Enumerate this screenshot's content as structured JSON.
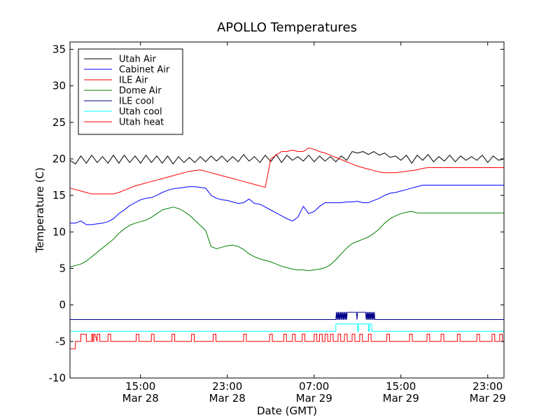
{
  "chart_data": {
    "type": "line",
    "title": "APOLLO Temperatures",
    "xlabel": "Date (GMT)",
    "ylabel": "Temperature (C)",
    "xlim_hours": [
      8.5,
      48.5
    ],
    "ylim": [
      -10,
      36
    ],
    "grid": false,
    "legend_position": "top-left",
    "x_ticks": [
      {
        "hours": 15,
        "time": "15:00",
        "date": "Mar 28"
      },
      {
        "hours": 23,
        "time": "23:00",
        "date": "Mar 28"
      },
      {
        "hours": 31,
        "time": "07:00",
        "date": "Mar 29"
      },
      {
        "hours": 39,
        "time": "15:00",
        "date": "Mar 29"
      },
      {
        "hours": 47,
        "time": "23:00",
        "date": "Mar 29"
      }
    ],
    "y_ticks": [
      -10,
      -5,
      0,
      5,
      10,
      15,
      20,
      25,
      30,
      35
    ],
    "y_tick_labels": [
      "-10",
      "-5",
      "0",
      "5",
      "10",
      "15",
      "20",
      "25",
      "30",
      "35"
    ],
    "series": [
      {
        "name": "Utah Air",
        "color": "#000000",
        "x": [
          8.5,
          9.0,
          9.5,
          10.0,
          10.5,
          11.0,
          11.5,
          12.0,
          12.5,
          13.0,
          13.5,
          14.0,
          14.5,
          15.0,
          15.5,
          16.0,
          16.5,
          17.0,
          17.5,
          18.0,
          18.5,
          19.0,
          19.5,
          20.0,
          20.5,
          21.0,
          21.5,
          22.0,
          22.5,
          23.0,
          23.5,
          24.0,
          24.5,
          25.0,
          25.5,
          26.0,
          26.5,
          27.0,
          27.5,
          28.0,
          28.5,
          29.0,
          29.5,
          30.0,
          30.5,
          31.0,
          31.5,
          32.0,
          32.5,
          33.0,
          33.5,
          34.0,
          34.5,
          35.0,
          35.5,
          36.0,
          36.5,
          37.0,
          37.5,
          38.0,
          38.5,
          39.0,
          39.5,
          40.0,
          40.5,
          41.0,
          41.5,
          42.0,
          42.5,
          43.0,
          43.5,
          44.0,
          44.5,
          45.0,
          45.5,
          46.0,
          46.5,
          47.0,
          47.5,
          48.0,
          48.5
        ],
        "values": [
          19.8,
          19.3,
          20.4,
          19.4,
          20.5,
          19.5,
          20.3,
          19.4,
          20.5,
          19.4,
          20.5,
          19.5,
          20.4,
          19.4,
          20.5,
          19.5,
          20.4,
          19.4,
          20.4,
          19.3,
          20.3,
          19.5,
          20.2,
          19.5,
          20.3,
          19.6,
          20.4,
          19.7,
          20.4,
          19.6,
          20.3,
          19.6,
          20.6,
          19.7,
          20.3,
          19.5,
          20.5,
          19.6,
          20.6,
          19.5,
          20.5,
          19.8,
          20.3,
          19.7,
          20.5,
          19.6,
          20.4,
          19.7,
          20.3,
          19.6,
          20.4,
          19.8,
          21.0,
          20.8,
          21.0,
          20.6,
          21.0,
          20.5,
          20.8,
          20.2,
          20.4,
          19.8,
          20.5,
          19.4,
          20.5,
          19.8,
          20.6,
          19.6,
          20.3,
          19.7,
          20.5,
          19.6,
          20.4,
          19.8,
          20.3,
          19.8,
          20.5,
          19.5,
          20.4,
          19.8,
          20.0
        ]
      },
      {
        "name": "Cabinet Air",
        "color": "#0000ff",
        "x": [
          8.5,
          9.0,
          9.5,
          10.0,
          10.5,
          11.0,
          11.5,
          12.0,
          12.5,
          13.0,
          13.5,
          14.0,
          14.5,
          15.0,
          15.5,
          16.0,
          16.5,
          17.0,
          17.5,
          18.0,
          18.5,
          19.0,
          19.5,
          20.0,
          20.5,
          21.0,
          21.5,
          22.0,
          22.5,
          23.0,
          23.5,
          24.0,
          24.5,
          25.0,
          25.5,
          26.0,
          26.5,
          27.0,
          27.5,
          28.0,
          28.5,
          29.0,
          29.5,
          30.0,
          30.5,
          31.0,
          31.5,
          32.0,
          32.5,
          33.0,
          33.5,
          34.0,
          34.5,
          35.0,
          35.5,
          36.0,
          36.5,
          37.0,
          37.5,
          38.0,
          38.5,
          39.0,
          39.5,
          40.0,
          40.5,
          41.0,
          41.5,
          42.0,
          42.5,
          43.0,
          43.5,
          44.0,
          44.5,
          45.0,
          45.5,
          46.0,
          46.5,
          47.0,
          47.5,
          48.0,
          48.5
        ],
        "values": [
          11.2,
          11.2,
          11.5,
          11.0,
          11.0,
          11.1,
          11.2,
          11.4,
          11.8,
          12.5,
          13.0,
          13.6,
          14.0,
          14.4,
          14.6,
          14.7,
          15.0,
          15.4,
          15.7,
          15.9,
          16.0,
          16.1,
          16.2,
          16.2,
          16.1,
          16.0,
          15.0,
          14.6,
          14.4,
          14.3,
          14.1,
          13.9,
          14.0,
          14.5,
          13.9,
          13.8,
          13.4,
          13.0,
          12.6,
          12.2,
          11.8,
          11.5,
          12.0,
          13.5,
          12.5,
          12.8,
          13.5,
          14.0,
          14.0,
          14.0,
          14.0,
          14.1,
          14.1,
          14.2,
          14.0,
          14.0,
          14.3,
          14.6,
          15.0,
          15.3,
          15.4,
          15.6,
          15.8,
          16.0,
          16.2,
          16.4,
          16.4,
          16.4,
          16.4,
          16.4,
          16.4,
          16.4,
          16.4,
          16.4,
          16.4,
          16.4,
          16.4,
          16.4,
          16.4,
          16.4,
          16.4
        ]
      },
      {
        "name": "ILE Air",
        "color": "#ff0000",
        "x": [
          8.5,
          9.0,
          9.5,
          10.0,
          10.5,
          11.0,
          11.5,
          12.0,
          12.5,
          13.0,
          13.5,
          14.0,
          14.5,
          15.0,
          15.5,
          16.0,
          16.5,
          17.0,
          17.5,
          18.0,
          18.5,
          19.0,
          19.5,
          20.0,
          20.5,
          21.0,
          21.5,
          22.0,
          22.5,
          23.0,
          23.5,
          24.0,
          24.5,
          25.0,
          25.5,
          26.0,
          26.5,
          27.0,
          27.5,
          28.0,
          28.5,
          29.0,
          29.5,
          30.0,
          30.5,
          31.0,
          31.5,
          32.0,
          32.5,
          33.0,
          33.5,
          34.0,
          34.5,
          35.0,
          35.5,
          36.0,
          36.5,
          37.0,
          37.5,
          38.0,
          38.5,
          39.0,
          39.5,
          40.0,
          40.5,
          41.0,
          41.5,
          42.0,
          42.5,
          43.0,
          43.5,
          44.0,
          44.5,
          45.0,
          45.5,
          46.0,
          46.5,
          47.0,
          47.5,
          48.0,
          48.5
        ],
        "values": [
          16.0,
          15.8,
          15.6,
          15.4,
          15.2,
          15.2,
          15.2,
          15.2,
          15.2,
          15.4,
          15.7,
          16.0,
          16.3,
          16.5,
          16.7,
          16.9,
          17.1,
          17.3,
          17.5,
          17.7,
          17.9,
          18.1,
          18.3,
          18.4,
          18.5,
          18.3,
          18.1,
          17.9,
          17.7,
          17.5,
          17.3,
          17.1,
          16.9,
          16.7,
          16.5,
          16.3,
          16.1,
          20.0,
          20.5,
          21.0,
          21.0,
          21.2,
          21.0,
          21.0,
          21.5,
          21.3,
          21.0,
          20.8,
          20.5,
          20.2,
          19.9,
          19.6,
          19.3,
          19.0,
          18.8,
          18.6,
          18.4,
          18.2,
          18.1,
          18.1,
          18.1,
          18.2,
          18.3,
          18.4,
          18.5,
          18.7,
          18.8,
          18.8,
          18.8,
          18.8,
          18.8,
          18.8,
          18.8,
          18.8,
          18.8,
          18.8,
          18.8,
          18.8,
          18.8,
          18.8,
          18.8
        ]
      },
      {
        "name": "Dome Air",
        "color": "#008000",
        "x": [
          8.5,
          9.0,
          9.5,
          10.0,
          10.5,
          11.0,
          11.5,
          12.0,
          12.5,
          13.0,
          13.5,
          14.0,
          14.5,
          15.0,
          15.5,
          16.0,
          16.5,
          17.0,
          17.5,
          18.0,
          18.5,
          19.0,
          19.5,
          20.0,
          20.5,
          21.0,
          21.5,
          22.0,
          22.5,
          23.0,
          23.5,
          24.0,
          24.5,
          25.0,
          25.5,
          26.0,
          26.5,
          27.0,
          27.5,
          28.0,
          28.5,
          29.0,
          29.5,
          30.0,
          30.5,
          31.0,
          31.5,
          32.0,
          32.5,
          33.0,
          33.5,
          34.0,
          34.5,
          35.0,
          35.5,
          36.0,
          36.5,
          37.0,
          37.5,
          38.0,
          38.5,
          39.0,
          39.5,
          40.0,
          40.5,
          41.0,
          41.5,
          42.0,
          42.5,
          43.0,
          43.5,
          44.0,
          44.5,
          45.0,
          45.5,
          46.0,
          46.5,
          47.0,
          47.5,
          48.0,
          48.5
        ],
        "values": [
          5.2,
          5.4,
          5.6,
          6.0,
          6.6,
          7.2,
          7.8,
          8.4,
          9.0,
          9.8,
          10.4,
          10.9,
          11.2,
          11.4,
          11.6,
          12.0,
          12.5,
          13.0,
          13.2,
          13.4,
          13.2,
          12.8,
          12.3,
          11.6,
          10.9,
          10.2,
          8.0,
          7.7,
          7.9,
          8.1,
          8.2,
          8.0,
          7.6,
          7.0,
          6.6,
          6.3,
          6.1,
          5.9,
          5.6,
          5.3,
          5.1,
          4.9,
          4.8,
          4.8,
          4.7,
          4.8,
          4.9,
          5.1,
          5.5,
          6.2,
          7.0,
          7.8,
          8.4,
          8.7,
          9.0,
          9.3,
          9.8,
          10.4,
          11.2,
          11.8,
          12.2,
          12.5,
          12.7,
          12.8,
          12.6,
          12.6,
          12.6,
          12.6,
          12.6,
          12.6,
          12.6,
          12.6,
          12.6,
          12.6,
          12.6,
          12.6,
          12.6,
          12.6,
          12.6,
          12.6,
          12.6
        ]
      },
      {
        "name": "ILE cool",
        "color": "#00008b",
        "x": [
          8.5,
          33.0,
          33.05,
          33.1,
          33.15,
          33.2,
          33.25,
          33.3,
          33.35,
          33.4,
          33.45,
          33.5,
          33.55,
          33.6,
          33.65,
          33.7,
          33.75,
          33.8,
          33.85,
          33.9,
          33.95,
          34.0,
          34.05,
          34.1,
          34.15,
          34.2,
          34.25,
          34.3,
          34.35,
          34.4,
          34.45,
          34.5,
          34.55,
          34.6,
          34.65,
          34.7,
          34.75,
          34.8,
          34.85,
          34.9,
          34.95,
          35.0,
          35.05,
          35.1,
          35.15,
          35.2,
          35.25,
          35.3,
          35.35,
          35.4,
          35.45,
          35.5,
          35.55,
          35.6,
          35.65,
          35.7,
          35.75,
          35.8,
          35.85,
          35.9,
          35.95,
          36.0,
          36.05,
          36.1,
          36.15,
          36.2,
          36.25,
          36.3,
          36.35,
          36.4,
          36.45,
          36.5,
          36.55,
          36.6,
          36.65,
          36.7,
          36.75,
          36.8,
          48.5
        ],
        "values": [
          -2.0,
          -2.0,
          -1.0,
          -2.0,
          -1.0,
          -2.0,
          -1.0,
          -2.0,
          -1.0,
          -2.0,
          -1.0,
          -2.0,
          -1.0,
          -2.0,
          -1.0,
          -2.0,
          -1.0,
          -2.0,
          -1.0,
          -2.0,
          -1.0,
          -2.0,
          -1.0,
          -1.0,
          -1.0,
          -1.0,
          -1.0,
          -1.0,
          -1.0,
          -1.0,
          -1.0,
          -1.0,
          -1.0,
          -1.0,
          -1.0,
          -1.0,
          -1.0,
          -1.0,
          -1.0,
          -1.0,
          -2.0,
          -1.0,
          -1.0,
          -1.0,
          -1.0,
          -1.0,
          -1.0,
          -1.0,
          -1.0,
          -1.0,
          -1.0,
          -1.0,
          -1.0,
          -1.0,
          -1.0,
          -1.0,
          -1.0,
          -2.0,
          -1.0,
          -2.0,
          -1.0,
          -2.0,
          -1.0,
          -2.0,
          -1.0,
          -2.0,
          -1.0,
          -2.0,
          -1.0,
          -2.0,
          -1.0,
          -2.0,
          -1.0,
          -2.0,
          -2.0,
          -2.0,
          -2.0,
          -2.0,
          -2.0
        ]
      },
      {
        "name": "Utah cool",
        "color": "#00ffff",
        "x": [
          8.5,
          33.0,
          33.0,
          35.0,
          35.0,
          35.1,
          35.1,
          36.0,
          36.0,
          36.1,
          36.1,
          36.3,
          36.3,
          48.5
        ],
        "values": [
          -3.6,
          -3.6,
          -2.6,
          -2.6,
          -3.6,
          -3.6,
          -2.6,
          -2.6,
          -3.6,
          -3.6,
          -2.6,
          -2.6,
          -3.6,
          -3.6
        ]
      },
      {
        "name": "Utah heat",
        "color": "#ff0000",
        "x": [
          8.5,
          9.0,
          9.0,
          9.5,
          9.5,
          10.0,
          10.0,
          10.5,
          10.5,
          10.6,
          10.6,
          10.7,
          10.7,
          10.8
        ],
        "values": [
          -6.0,
          -6.0,
          -5.0,
          -5.0,
          -4.0,
          -4.0,
          -5.0,
          -5.0,
          -4.0,
          -4.0,
          -5.0,
          -5.0,
          -4.0,
          -4.0
        ]
      }
    ],
    "utah_heat_pulses_hours": [
      11.0,
      12.0,
      14.6,
      16.0,
      17.9,
      19.7,
      21.7,
      24.5,
      26.9,
      28.2,
      29.0,
      29.9,
      31.0,
      31.5,
      32.0,
      32.5,
      33.2,
      33.8,
      34.5,
      35.2,
      36.0,
      37.7,
      39.8,
      41.4,
      42.7,
      44.2,
      46.0,
      47.4,
      48.1
    ]
  },
  "legend": [
    {
      "label": "Utah Air",
      "color": "#000000"
    },
    {
      "label": "Cabinet Air",
      "color": "#0000ff"
    },
    {
      "label": "ILE Air",
      "color": "#ff0000"
    },
    {
      "label": "Dome Air",
      "color": "#008000"
    },
    {
      "label": "ILE cool",
      "color": "#00008b"
    },
    {
      "label": "Utah cool",
      "color": "#00ffff"
    },
    {
      "label": "Utah heat",
      "color": "#ff0000"
    }
  ]
}
